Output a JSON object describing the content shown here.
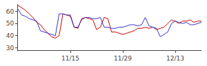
{
  "chart_data": {
    "type": "line",
    "categories": [
      null,
      null,
      null,
      null,
      null,
      null,
      null,
      null,
      null,
      null,
      null,
      null,
      null,
      null,
      "11/15",
      null,
      null,
      null,
      null,
      null,
      null,
      null,
      null,
      null,
      null,
      null,
      null,
      null,
      "11/29",
      null,
      null,
      null,
      null,
      null,
      null,
      null,
      null,
      null,
      null,
      null,
      null,
      null,
      "12/13",
      null,
      null,
      null,
      null,
      null,
      null,
      null
    ],
    "series": [
      {
        "color": "#cc0000",
        "values": [
          65,
          63,
          61,
          58,
          55,
          51,
          49,
          45,
          42,
          39,
          38,
          40,
          58,
          57,
          56,
          47,
          46,
          54,
          55,
          54,
          53,
          45,
          47,
          55,
          54,
          43,
          43,
          42,
          41,
          42,
          43,
          44,
          46,
          46,
          47,
          46,
          47,
          45,
          46,
          47,
          50,
          53,
          52,
          50,
          52,
          52,
          53,
          51,
          52,
          52
        ]
      },
      {
        "color": "#3333cc",
        "values": [
          62,
          57,
          56,
          54,
          53,
          52,
          44,
          43,
          42,
          41,
          40,
          58,
          58,
          57,
          57,
          47,
          47,
          53,
          55,
          55,
          54,
          54,
          55,
          47,
          47,
          46,
          46,
          47,
          47,
          48,
          49,
          49,
          48,
          49,
          55,
          48,
          47,
          46,
          39,
          41,
          43,
          50,
          52,
          51,
          50,
          51,
          49,
          49,
          50,
          51
        ]
      }
    ],
    "ylim": [
      28,
      66
    ],
    "yticks": [
      30,
      40,
      50,
      60
    ],
    "grid": false
  }
}
